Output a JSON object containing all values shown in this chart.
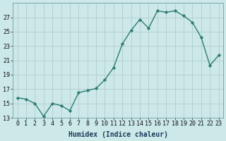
{
  "x": [
    0,
    1,
    2,
    3,
    4,
    5,
    6,
    7,
    8,
    9,
    10,
    11,
    12,
    13,
    14,
    15,
    16,
    17,
    18,
    19,
    20,
    21,
    22,
    23
  ],
  "y": [
    15.8,
    15.6,
    15.0,
    13.2,
    15.0,
    14.7,
    14.0,
    16.5,
    16.8,
    17.1,
    18.3,
    20.0,
    23.3,
    25.2,
    26.7,
    25.5,
    27.9,
    27.7,
    27.9,
    27.2,
    26.3,
    24.2,
    20.3,
    21.7
  ],
  "xlabel": "Humidex (Indice chaleur)",
  "line_color": "#2e7d6e",
  "marker": "D",
  "marker_size": 2.2,
  "bg_color": "#cce8e8",
  "grid_color": "#b0cccc",
  "ylim": [
    13,
    29
  ],
  "yticks": [
    13,
    15,
    17,
    19,
    21,
    23,
    25,
    27
  ],
  "xticks": [
    0,
    1,
    2,
    3,
    4,
    5,
    6,
    7,
    8,
    9,
    10,
    11,
    12,
    13,
    14,
    15,
    16,
    17,
    18,
    19,
    20,
    21,
    22,
    23
  ],
  "xlim": [
    -0.5,
    23.5
  ],
  "tick_fontsize": 6.0,
  "xlabel_fontsize": 7.0,
  "linewidth": 1.0
}
